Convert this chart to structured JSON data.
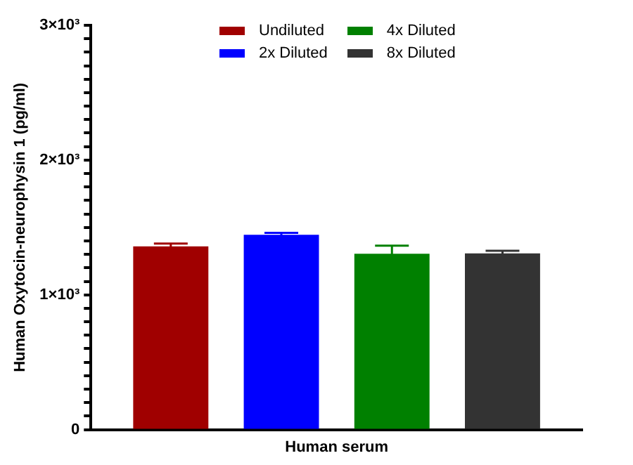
{
  "chart_data": {
    "type": "bar",
    "categories": [
      "Human serum"
    ],
    "ylabel": "Human Oxytocin-neurophysin 1 (pg/ml)",
    "series": [
      {
        "name": "Undiluted",
        "color": "#a00000",
        "values": [
          1360
        ],
        "errors": [
          20
        ]
      },
      {
        "name": "2x Diluted",
        "color": "#0000ff",
        "values": [
          1445
        ],
        "errors": [
          15
        ]
      },
      {
        "name": "4x Diluted",
        "color": "#008000",
        "values": [
          1305
        ],
        "errors": [
          60
        ]
      },
      {
        "name": "8x Diluted",
        "color": "#333333",
        "values": [
          1307
        ],
        "errors": [
          20
        ]
      }
    ],
    "ylim": [
      0,
      3000
    ],
    "yticks": [
      0,
      {
        "value": 100,
        "label": null
      },
      {
        "value": 200,
        "label": null
      },
      {
        "value": 300,
        "label": null
      },
      {
        "value": 400,
        "label": null
      },
      {
        "value": 500,
        "label": null
      },
      {
        "value": 600,
        "label": null
      },
      {
        "value": 700,
        "label": null
      },
      {
        "value": 800,
        "label": null
      },
      {
        "value": 900,
        "label": null
      },
      {
        "value": 1000,
        "label": "1×10³"
      },
      {
        "value": 1100,
        "label": null
      },
      {
        "value": 1200,
        "label": null
      },
      {
        "value": 1300,
        "label": null
      },
      {
        "value": 1400,
        "label": null
      },
      {
        "value": 1500,
        "label": null
      },
      {
        "value": 1600,
        "label": null
      },
      {
        "value": 1700,
        "label": null
      },
      {
        "value": 1800,
        "label": null
      },
      {
        "value": 1900,
        "label": null
      },
      {
        "value": 2000,
        "label": "2×10³"
      },
      {
        "value": 2100,
        "label": null
      },
      {
        "value": 2200,
        "label": null
      },
      {
        "value": 2300,
        "label": null
      },
      {
        "value": 2400,
        "label": null
      },
      {
        "value": 2500,
        "label": null
      },
      {
        "value": 2600,
        "label": null
      },
      {
        "value": 2700,
        "label": null
      },
      {
        "value": 2800,
        "label": null
      },
      {
        "value": 2900,
        "label": null
      },
      {
        "value": 3000,
        "label": "3×10³"
      }
    ],
    "grid": false,
    "legend": "top"
  }
}
